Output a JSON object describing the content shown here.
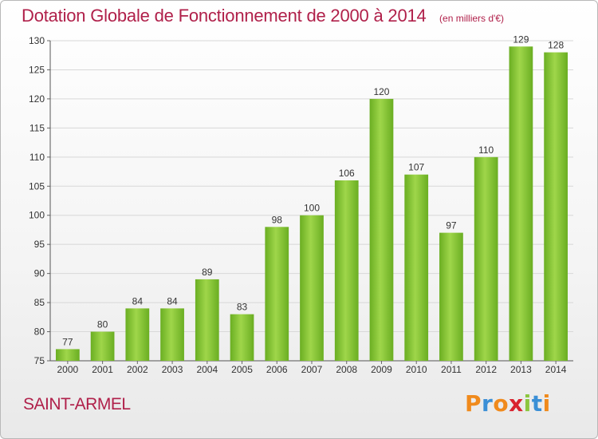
{
  "chart_data": {
    "type": "bar",
    "title": "Dotation Globale de Fonctionnement de 2000 à 2014",
    "subtitle": "(en milliers d'€)",
    "categories": [
      "2000",
      "2001",
      "2002",
      "2003",
      "2004",
      "2005",
      "2006",
      "2007",
      "2008",
      "2009",
      "2010",
      "2011",
      "2012",
      "2013",
      "2014"
    ],
    "values": [
      77,
      80,
      84,
      84,
      89,
      83,
      98,
      100,
      106,
      120,
      107,
      97,
      110,
      129,
      128
    ],
    "ylim": [
      75,
      130
    ],
    "yticks": [
      75,
      80,
      85,
      90,
      95,
      100,
      105,
      110,
      115,
      120,
      125,
      130
    ],
    "grid": true,
    "bar_color": "#7cc22e",
    "xlabel": "",
    "ylabel": ""
  },
  "place_name": "SAINT-ARMEL",
  "logo": {
    "letters": [
      "P",
      "r",
      "o",
      "x",
      "i",
      "t",
      "i"
    ],
    "colors": [
      "#f08a1c",
      "#3b8fd6",
      "#f08a1c",
      "#d9232e",
      "#8cc63f",
      "#3b8fd6",
      "#f08a1c"
    ]
  },
  "colors": {
    "accent": "#b0204a",
    "grid": "#d8d8d8"
  }
}
